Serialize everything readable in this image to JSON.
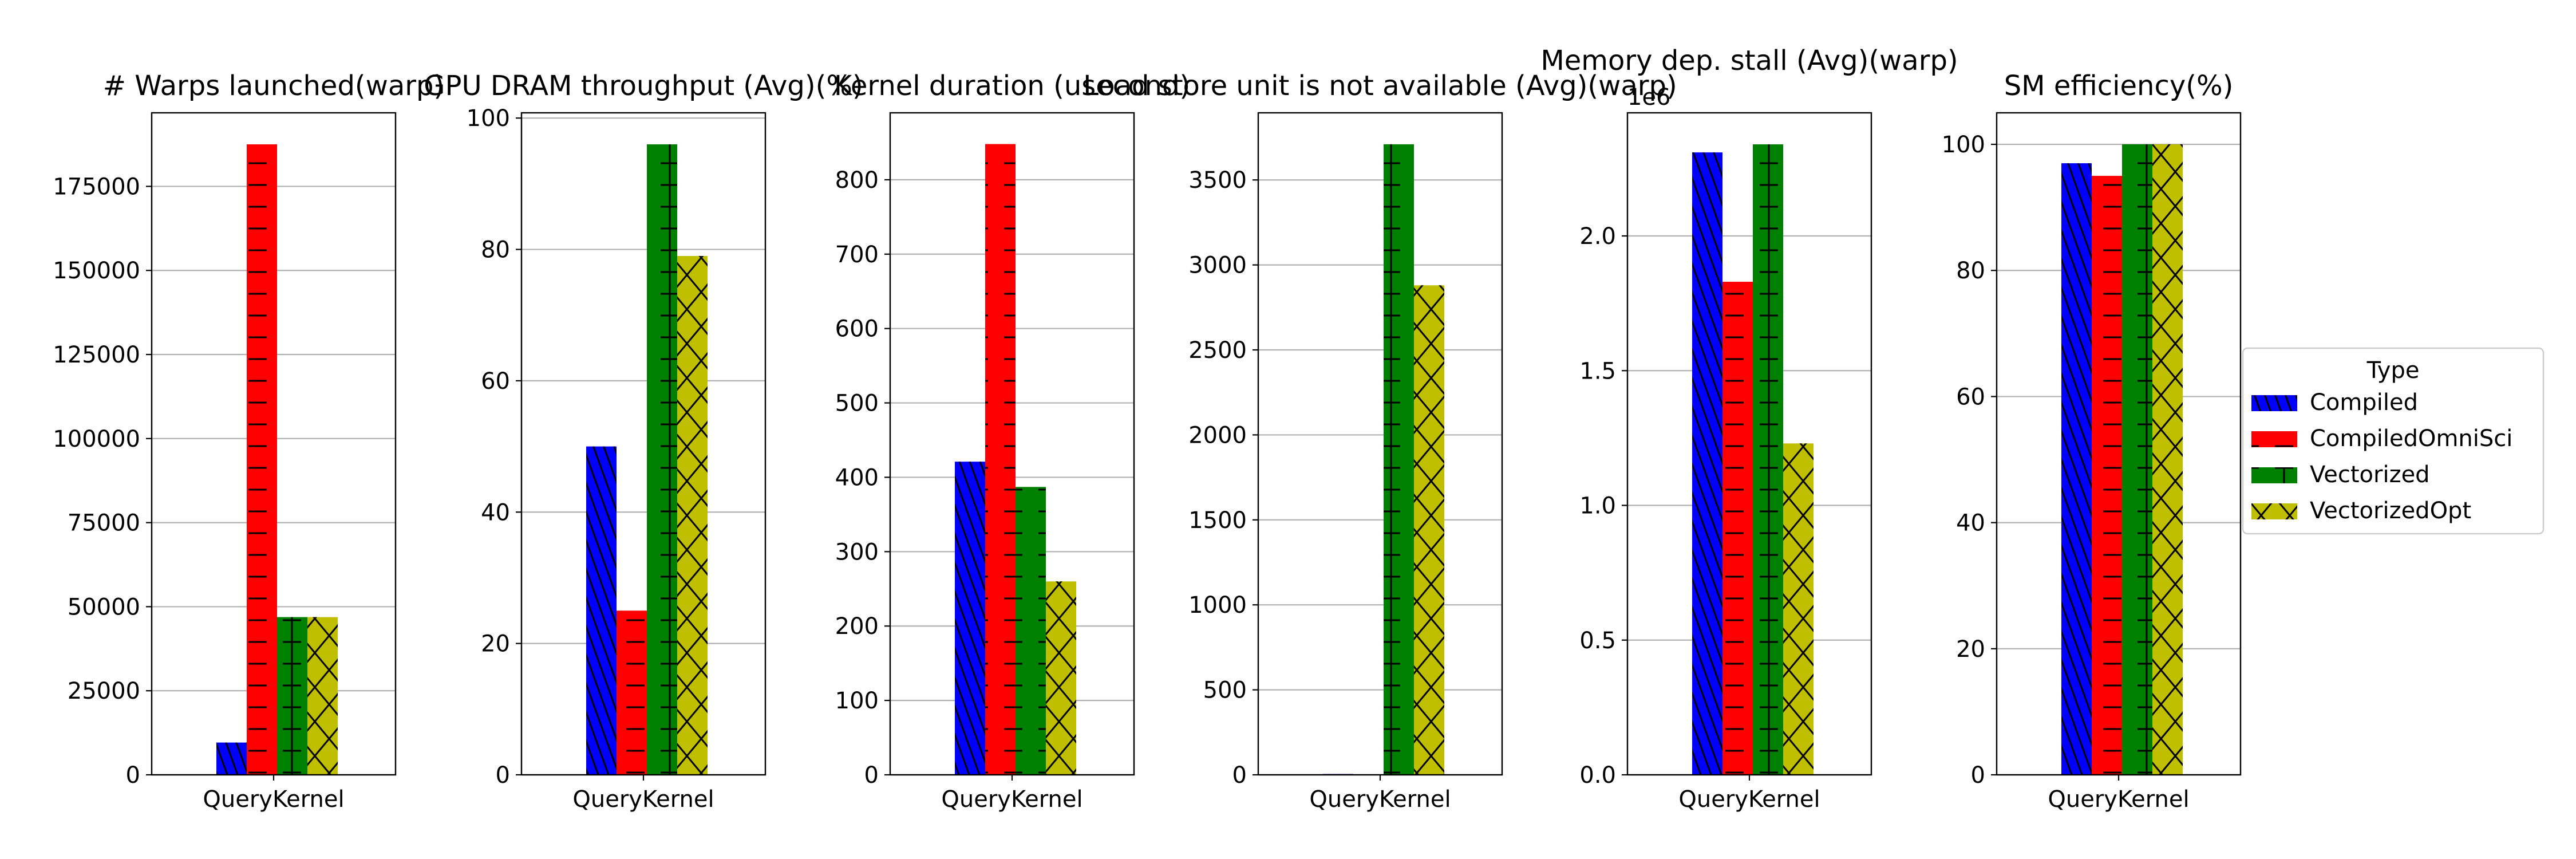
{
  "colors": {
    "Compiled": "#0000ff",
    "CompiledOmniSci": "#ff0000",
    "Vectorized": "#008000",
    "VectorizedOpt": "#bfbf00",
    "grid": "#b0b0b0"
  },
  "legend": {
    "title": "Type",
    "placement": "center-right",
    "entries": [
      "Compiled",
      "CompiledOmniSci",
      "Vectorized",
      "VectorizedOpt"
    ]
  },
  "chart_data": [
    {
      "type": "bar",
      "title": "# Warps launched(warp)",
      "categories": [
        "QueryKernel"
      ],
      "series": [
        {
          "name": "Compiled",
          "values": [
            9600
          ]
        },
        {
          "name": "CompiledOmniSci",
          "values": [
            187500
          ]
        },
        {
          "name": "Vectorized",
          "values": [
            46900
          ]
        },
        {
          "name": "VectorizedOpt",
          "values": [
            46900
          ]
        }
      ],
      "ylim": [
        0,
        196875
      ],
      "yticks": [
        0,
        25000,
        50000,
        75000,
        100000,
        125000,
        150000,
        175000
      ],
      "grid": true,
      "offset_label": ""
    },
    {
      "type": "bar",
      "title": "GPU DRAM throughput (Avg)(%)",
      "categories": [
        "QueryKernel"
      ],
      "series": [
        {
          "name": "Compiled",
          "values": [
            50
          ]
        },
        {
          "name": "CompiledOmniSci",
          "values": [
            25
          ]
        },
        {
          "name": "Vectorized",
          "values": [
            96
          ]
        },
        {
          "name": "VectorizedOpt",
          "values": [
            79
          ]
        }
      ],
      "ylim": [
        0,
        100.8
      ],
      "yticks": [
        0,
        20,
        40,
        60,
        80,
        100
      ],
      "grid": true,
      "offset_label": ""
    },
    {
      "type": "bar",
      "title": "Kernel duration (usecond)",
      "categories": [
        "QueryKernel"
      ],
      "series": [
        {
          "name": "Compiled",
          "values": [
            421
          ]
        },
        {
          "name": "CompiledOmniSci",
          "values": [
            848
          ]
        },
        {
          "name": "Vectorized",
          "values": [
            387
          ]
        },
        {
          "name": "VectorizedOpt",
          "values": [
            260
          ]
        }
      ],
      "ylim": [
        0,
        890
      ],
      "yticks": [
        0,
        100,
        200,
        300,
        400,
        500,
        600,
        700,
        800
      ],
      "grid": true,
      "offset_label": ""
    },
    {
      "type": "bar",
      "title": "Load store unit is not available (Avg)(warp)",
      "categories": [
        "QueryKernel"
      ],
      "series": [
        {
          "name": "Compiled",
          "values": [
            5
          ]
        },
        {
          "name": "CompiledOmniSci",
          "values": [
            3
          ]
        },
        {
          "name": "Vectorized",
          "values": [
            3710
          ]
        },
        {
          "name": "VectorizedOpt",
          "values": [
            2880
          ]
        }
      ],
      "ylim": [
        0,
        3895
      ],
      "yticks": [
        0,
        500,
        1000,
        1500,
        2000,
        2500,
        3000,
        3500
      ],
      "grid": true,
      "offset_label": ""
    },
    {
      "type": "bar",
      "title": "Memory dep. stall (Avg)(warp)",
      "categories": [
        "QueryKernel"
      ],
      "series": [
        {
          "name": "Compiled",
          "values": [
            2.31
          ]
        },
        {
          "name": "CompiledOmniSci",
          "values": [
            1.83
          ]
        },
        {
          "name": "Vectorized",
          "values": [
            2.34
          ]
        },
        {
          "name": "VectorizedOpt",
          "values": [
            1.23
          ]
        }
      ],
      "ylim": [
        0,
        2.457
      ],
      "yticks": [
        "0.0",
        "0.5",
        "1.0",
        "1.5",
        "2.0"
      ],
      "grid": true,
      "offset_label": "1e6"
    },
    {
      "type": "bar",
      "title": "SM efficiency(%)",
      "categories": [
        "QueryKernel"
      ],
      "series": [
        {
          "name": "Compiled",
          "values": [
            97
          ]
        },
        {
          "name": "CompiledOmniSci",
          "values": [
            95
          ]
        },
        {
          "name": "Vectorized",
          "values": [
            100
          ]
        },
        {
          "name": "VectorizedOpt",
          "values": [
            100
          ]
        }
      ],
      "ylim": [
        0,
        105
      ],
      "yticks": [
        0,
        20,
        40,
        60,
        80,
        100
      ],
      "grid": true,
      "offset_label": ""
    }
  ]
}
